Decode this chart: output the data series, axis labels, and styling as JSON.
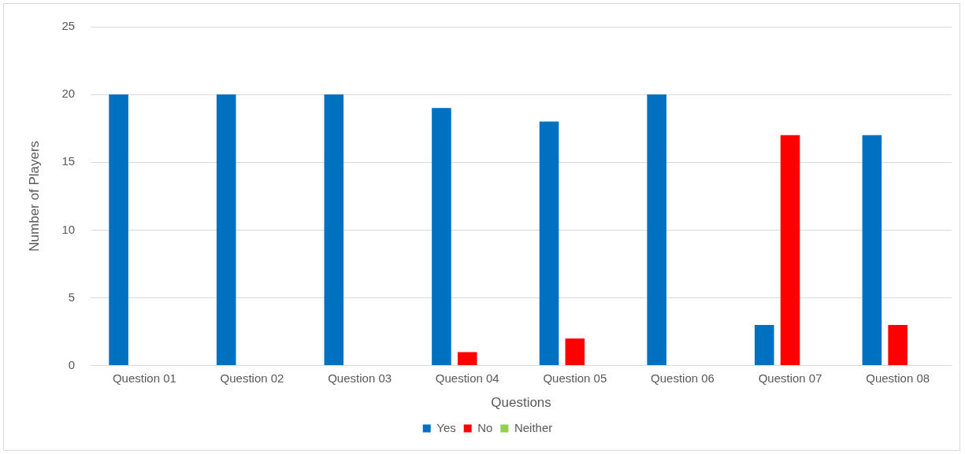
{
  "chart_data": {
    "type": "bar",
    "xlabel": "Questions",
    "ylabel": "Number of Players",
    "categories": [
      "Question 01",
      "Question 02",
      "Question 03",
      "Question 04",
      "Question 05",
      "Question 06",
      "Question 07",
      "Question 08"
    ],
    "series": [
      {
        "name": "Yes",
        "color": "#0070c0",
        "values": [
          20,
          20,
          20,
          19,
          18,
          20,
          3,
          17
        ]
      },
      {
        "name": "No",
        "color": "#ff0000",
        "values": [
          0,
          0,
          0,
          1,
          2,
          0,
          17,
          3
        ]
      },
      {
        "name": "Neither",
        "color": "#92d050",
        "values": [
          0,
          0,
          0,
          0,
          0,
          0,
          0,
          0
        ]
      }
    ],
    "ylim": [
      0,
      25
    ],
    "yticks": [
      0,
      5,
      10,
      15,
      20,
      25
    ],
    "grid": "y",
    "legend": "bottom"
  }
}
